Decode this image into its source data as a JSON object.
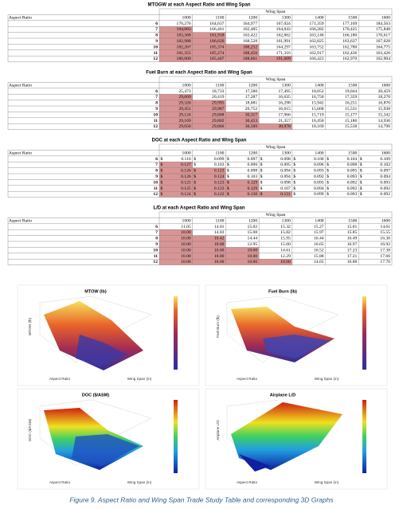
{
  "tables": [
    {
      "title": "MTOGW at each Aspect Ratio and Wing Span",
      "header": "Wing Span",
      "row_header": "Aspect Ratio",
      "columns": [
        "1000",
        "1100",
        "1200",
        "1300",
        "1400",
        "1500",
        "1600"
      ],
      "rows": [
        {
          "label": "6",
          "cells": [
            "176,276",
            "164,637",
            "164,977",
            "167,024",
            "171,359",
            "177,169",
            "184,563"
          ],
          "highlight": [
            false,
            false,
            false,
            false,
            false,
            false,
            false
          ]
        },
        {
          "label": "7",
          "cells": [
            "184,083",
            "166,461",
            "162,485",
            "164,043",
            "166,282",
            "170,425",
            "175,848"
          ],
          "highlight": [
            true,
            false,
            false,
            false,
            false,
            false,
            false
          ]
        },
        {
          "label": "8",
          "cells": [
            "183,368",
            "181,918",
            "163,422",
            "162,062",
            "163,140",
            "166,180",
            "170,617"
          ],
          "highlight": [
            true,
            true,
            false,
            false,
            false,
            false,
            false
          ]
        },
        {
          "label": "9",
          "cells": [
            "182,988",
            "186,620",
            "168,528",
            "161,991",
            "162,825",
            "163,637",
            "167,028"
          ],
          "highlight": [
            true,
            true,
            false,
            false,
            false,
            false,
            false
          ]
        },
        {
          "label": "10",
          "cells": [
            "182,267",
            "185,374",
            "188,252",
            "164,297",
            "163,752",
            "162,780",
            "164,775"
          ],
          "highlight": [
            true,
            true,
            true,
            false,
            false,
            false,
            false
          ]
        },
        {
          "label": "11",
          "cells": [
            "181,355",
            "185,274",
            "188,456",
            "171,316",
            "162,917",
            "162,436",
            "163,420"
          ],
          "highlight": [
            true,
            true,
            true,
            false,
            false,
            false,
            false
          ]
        },
        {
          "label": "12",
          "cells": [
            "180,800",
            "185,407",
            "188,661",
            "191,609",
            "166,423",
            "162,970",
            "162,904"
          ],
          "highlight": [
            true,
            true,
            true,
            true,
            false,
            false,
            false
          ]
        }
      ]
    },
    {
      "title": "Fuel Burn at each Aspect Ratio and Wing Span",
      "header": "Wing Span",
      "row_header": "Aspect Ratio",
      "columns": [
        "1000",
        "1100",
        "1200",
        "1300",
        "1400",
        "1500",
        "1600"
      ],
      "rows": [
        {
          "label": "6",
          "cells": [
            "25,473",
            "18,733",
            "17,580",
            "17,495",
            "18,052",
            "19,044",
            "20,459"
          ],
          "highlight": [
            false,
            false,
            false,
            false,
            false,
            false,
            false
          ]
        },
        {
          "label": "7",
          "cells": [
            "29,669",
            "20,419",
            "17,287",
            "16,635",
            "16,750",
            "17,359",
            "18,270"
          ],
          "highlight": [
            true,
            false,
            false,
            false,
            false,
            false,
            false
          ]
        },
        {
          "label": "8",
          "cells": [
            "29,326",
            "29,995",
            "18,081",
            "16,298",
            "15,942",
            "16,251",
            "16,870"
          ],
          "highlight": [
            true,
            true,
            false,
            false,
            false,
            false,
            false
          ]
        },
        {
          "label": "9",
          "cells": [
            "29,451",
            "29,987",
            "20,752",
            "16,615",
            "15,668",
            "15,531",
            "15,938"
          ],
          "highlight": [
            true,
            true,
            false,
            false,
            false,
            false,
            false
          ]
        },
        {
          "label": "10",
          "cells": [
            "29,124",
            "29,808",
            "30,317",
            "17,966",
            "15,719",
            "15,177",
            "15,342"
          ],
          "highlight": [
            true,
            true,
            true,
            false,
            false,
            false,
            false
          ]
        },
        {
          "label": "11",
          "cells": [
            "29,169",
            "29,802",
            "30,453",
            "21,357",
            "16,450",
            "15,186",
            "14,936"
          ],
          "highlight": [
            true,
            true,
            true,
            false,
            false,
            false,
            false
          ]
        },
        {
          "label": "12",
          "cells": [
            "29,050",
            "29,866",
            "30,509",
            "30,978",
            "18,169",
            "15,538",
            "14,796"
          ],
          "highlight": [
            true,
            true,
            true,
            true,
            false,
            false,
            false
          ]
        }
      ]
    },
    {
      "title": "DOC at each Aspect Ratio and Wing Span",
      "header": "Wing Span",
      "row_header": "Aspect Ratio",
      "currency": "$",
      "columns": [
        "1000",
        "1100",
        "1200",
        "1300",
        "1400",
        "1500",
        "1600"
      ],
      "rows": [
        {
          "label": "6",
          "cells": [
            "0.116",
            "0.099",
            "0.097",
            "0.098",
            "0.100",
            "0.104",
            "0.109"
          ],
          "highlight": [
            false,
            false,
            false,
            false,
            false,
            false,
            false
          ]
        },
        {
          "label": "7",
          "cells": [
            "0.127",
            "0.103",
            "0.096",
            "0.095",
            "0.096",
            "0.098",
            "0.102"
          ],
          "highlight": [
            true,
            false,
            false,
            false,
            false,
            false,
            false
          ]
        },
        {
          "label": "8",
          "cells": [
            "0.126",
            "0.123",
            "0.098",
            "0.094",
            "0.093",
            "0.095",
            "0.097"
          ],
          "highlight": [
            true,
            true,
            false,
            false,
            false,
            false,
            false
          ]
        },
        {
          "label": "9",
          "cells": [
            "0.126",
            "0.124",
            "0.103",
            "0.094",
            "0.092",
            "0.093",
            "0.094"
          ],
          "highlight": [
            true,
            true,
            false,
            false,
            false,
            false,
            false
          ]
        },
        {
          "label": "10",
          "cells": [
            "0.125",
            "0.123",
            "0.129",
            "0.098",
            "0.093",
            "0.092",
            "0.093"
          ],
          "highlight": [
            true,
            true,
            true,
            false,
            false,
            false,
            false
          ]
        },
        {
          "label": "11",
          "cells": [
            "0.125",
            "0.123",
            "0.129",
            "0.107",
            "0.094",
            "0.092",
            "0.092"
          ],
          "highlight": [
            true,
            true,
            true,
            false,
            false,
            false,
            false
          ]
        },
        {
          "label": "12",
          "cells": [
            "0.124",
            "0.122",
            "0.130",
            "0.131",
            "0.099",
            "0.093",
            "0.092"
          ],
          "highlight": [
            true,
            true,
            true,
            true,
            false,
            false,
            false
          ]
        }
      ]
    },
    {
      "title": "L/D at each Aspect Ratio and Wing Span",
      "header": "Wing Span",
      "row_header": "Aspect Ratio",
      "columns": [
        "1000",
        "1100",
        "1200",
        "1300",
        "1400",
        "1500",
        "1600"
      ],
      "rows": [
        {
          "label": "6",
          "cells": [
            "11.05",
            "14.01",
            "15.02",
            "15.32",
            "15.27",
            "15.01",
            "14.61"
          ],
          "highlight": [
            false,
            false,
            false,
            false,
            false,
            false,
            false
          ]
        },
        {
          "label": "7",
          "cells": [
            "10.00",
            "14.03",
            "15.08",
            "15.82",
            "15.97",
            "15.85",
            "15.55"
          ],
          "highlight": [
            true,
            false,
            false,
            false,
            false,
            false,
            false
          ]
        },
        {
          "label": "8",
          "cells": [
            "10.00",
            "10.42",
            "14.44",
            "15.95",
            "16.44",
            "16.49",
            "16.30"
          ],
          "highlight": [
            true,
            true,
            false,
            false,
            false,
            false,
            false
          ]
        },
        {
          "label": "9",
          "cells": [
            "10.00",
            "10.00",
            "12.95",
            "15.60",
            "16.65",
            "16.97",
            "16.92"
          ],
          "highlight": [
            true,
            true,
            false,
            false,
            false,
            false,
            false
          ]
        },
        {
          "label": "10",
          "cells": [
            "10.00",
            "10.00",
            "10.00",
            "14.61",
            "16.52",
            "17.23",
            "17.38"
          ],
          "highlight": [
            true,
            true,
            true,
            false,
            false,
            false,
            false
          ]
        },
        {
          "label": "11",
          "cells": [
            "10.00",
            "10.00",
            "10.00",
            "12.29",
            "15.88",
            "17.21",
            "17.66"
          ],
          "highlight": [
            true,
            true,
            true,
            false,
            false,
            false,
            false
          ]
        },
        {
          "label": "12",
          "cells": [
            "10.00",
            "10.00",
            "10.00",
            "10.00",
            "14.65",
            "16.88",
            "17.76"
          ],
          "highlight": [
            true,
            true,
            true,
            true,
            false,
            false,
            false
          ]
        }
      ]
    }
  ],
  "highlight_color": "#d99594",
  "graphs": [
    {
      "title": "MTOW (lb)",
      "z_label": "MTOW (lb)",
      "x_label": "Aspect Ratio",
      "y_label": "Wing Span (in)"
    },
    {
      "title": "Fuel Burn (lb)",
      "z_label": "Fuel Burn (lb)",
      "x_label": "Aspect Ratio",
      "y_label": "Wing Span (in)"
    },
    {
      "title": "DOC ($/ASM)",
      "z_label": "DOC ($/ASM)",
      "x_label": "Aspect Ratio",
      "y_label": "Wing Span (in)"
    },
    {
      "title": "Airplane L/D",
      "z_label": "Airplane L/D",
      "x_label": "Aspect Ratio",
      "y_label": "Wing Span (in)"
    }
  ],
  "caption": "Figure 9. Aspect Ratio and Wing Span Trade Study Table and corresponding 3D Graphs"
}
